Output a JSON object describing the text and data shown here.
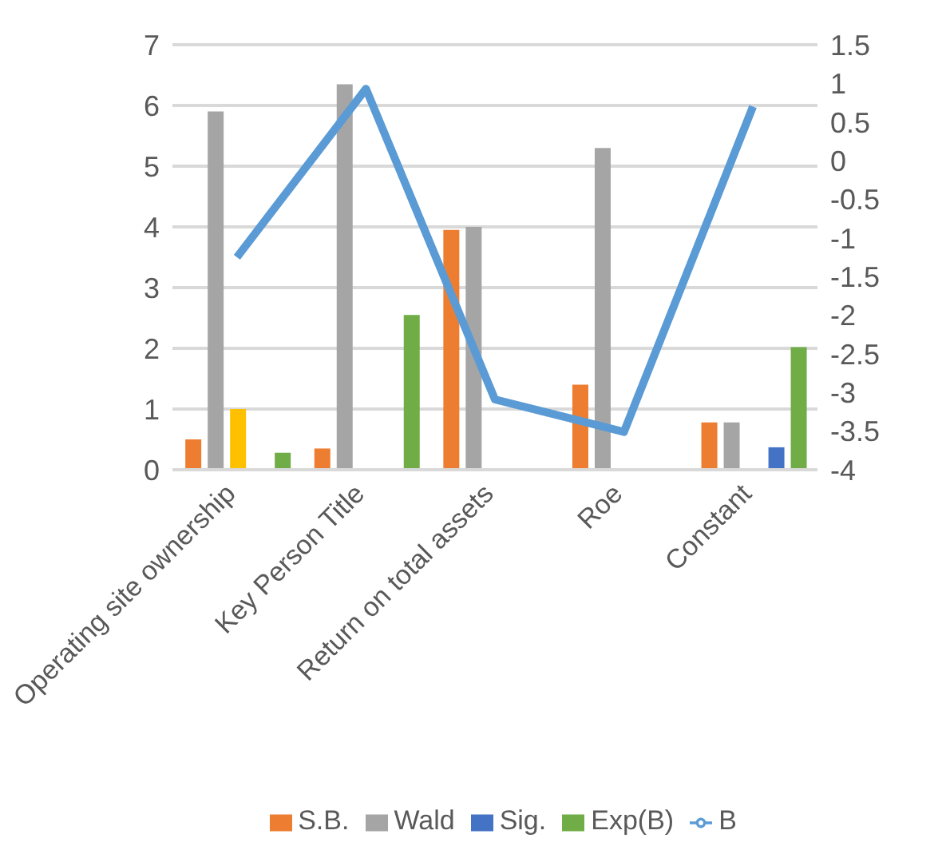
{
  "chart_data": {
    "type": "bar",
    "categories": [
      "Operating site ownership",
      "Key Person Title",
      "Return on total assets",
      "Roe",
      "Constant"
    ],
    "series": [
      {
        "name": "S.B.",
        "color": "#ed7d31",
        "values": [
          0.5,
          0.35,
          3.95,
          1.4,
          0.78
        ]
      },
      {
        "name": "Wald",
        "color": "#a5a5a5",
        "values": [
          5.9,
          6.35,
          4.0,
          5.3,
          0.78
        ]
      },
      {
        "color": "#ffc000",
        "values": [
          1.0,
          null,
          null,
          null,
          null
        ]
      },
      {
        "name": "Sig.",
        "color": "#4472c4",
        "values": [
          0,
          0,
          null,
          0,
          0.37
        ]
      },
      {
        "name": "Exp(B)",
        "color": "#70ad47",
        "values": [
          0.28,
          2.55,
          null,
          null,
          2.02
        ]
      },
      {
        "name": "B",
        "type": "line",
        "axis": "y2",
        "color": "#5b9bd5",
        "values": [
          -1.25,
          0.93,
          -3.09,
          -3.51,
          0.7
        ]
      }
    ],
    "ylim": [
      0,
      7
    ],
    "yticks": [
      0,
      1,
      2,
      3,
      4,
      5,
      6,
      7
    ],
    "y2lim": [
      -4,
      1.5
    ],
    "y2ticks": [
      -4,
      -3.5,
      -3,
      -2.5,
      -2,
      -1.5,
      -1,
      -0.5,
      0,
      0.5,
      1,
      1.5
    ],
    "grid": "y",
    "legend": "bottom"
  }
}
